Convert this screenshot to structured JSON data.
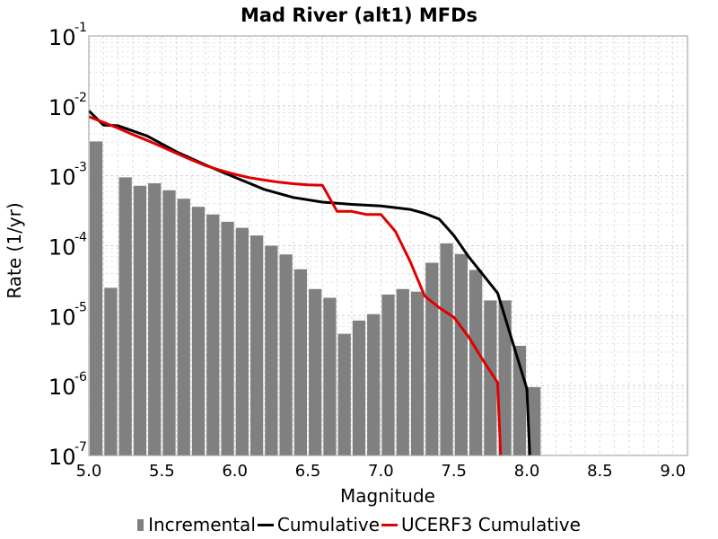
{
  "chart_data": {
    "type": "bar",
    "title": "Mad River (alt1) MFDs",
    "xlabel": "Magnitude",
    "ylabel": "Rate (1/yr)",
    "xlim": [
      5.0,
      9.1
    ],
    "ylim": [
      1e-07,
      0.1
    ],
    "yscale": "log",
    "grid": true,
    "legend_position": "bottom",
    "xticks": [
      "5.0",
      "5.5",
      "6.0",
      "6.5",
      "7.0",
      "7.5",
      "8.0",
      "8.5",
      "9.0"
    ],
    "yticks": [
      {
        "base": "10",
        "exp": "-1"
      },
      {
        "base": "10",
        "exp": "-2"
      },
      {
        "base": "10",
        "exp": "-3"
      },
      {
        "base": "10",
        "exp": "-4"
      },
      {
        "base": "10",
        "exp": "-5"
      },
      {
        "base": "10",
        "exp": "-6"
      },
      {
        "base": "10",
        "exp": "-7"
      }
    ],
    "series": [
      {
        "name": "Incremental",
        "kind": "bar",
        "color": "#808080",
        "x": [
          5.05,
          5.15,
          5.25,
          5.35,
          5.45,
          5.55,
          5.65,
          5.75,
          5.85,
          5.95,
          6.05,
          6.15,
          6.25,
          6.35,
          6.45,
          6.55,
          6.65,
          6.75,
          6.85,
          6.95,
          7.05,
          7.15,
          7.25,
          7.35,
          7.45,
          7.55,
          7.65,
          7.75,
          7.85,
          7.95,
          8.05
        ],
        "values": [
          0.0031,
          2.5e-05,
          0.00095,
          0.00072,
          0.00078,
          0.00062,
          0.00047,
          0.00036,
          0.00028,
          0.00022,
          0.00018,
          0.00014,
          0.0001,
          7.5e-05,
          4.6e-05,
          2.4e-05,
          1.8e-05,
          5.5e-06,
          8.5e-06,
          1.05e-05,
          2e-05,
          2.4e-05,
          2.2e-05,
          5.7e-05,
          0.000108,
          7.6e-05,
          4.5e-05,
          1.65e-05,
          1.65e-05,
          3.7e-06,
          9.5e-07
        ]
      },
      {
        "name": "Cumulative",
        "kind": "line",
        "color": "#000000",
        "x": [
          5.0,
          5.1,
          5.2,
          5.4,
          5.6,
          5.8,
          6.0,
          6.2,
          6.4,
          6.6,
          6.8,
          7.0,
          7.2,
          7.3,
          7.4,
          7.5,
          7.6,
          7.8,
          8.0,
          8.02
        ],
        "values": [
          0.0085,
          0.0053,
          0.0052,
          0.0037,
          0.0022,
          0.00143,
          0.00095,
          0.00064,
          0.00049,
          0.00042,
          0.00039,
          0.00037,
          0.00033,
          0.00029,
          0.00024,
          0.00014,
          7e-05,
          2.1e-05,
          9e-07,
          1e-07
        ]
      },
      {
        "name": "UCERF3 Cumulative",
        "kind": "line",
        "color": "#e00000",
        "x": [
          5.0,
          5.1,
          5.2,
          5.3,
          5.4,
          5.5,
          5.6,
          5.7,
          5.8,
          5.9,
          6.0,
          6.1,
          6.2,
          6.3,
          6.4,
          6.5,
          6.6,
          6.7,
          6.8,
          6.9,
          7.0,
          7.1,
          7.2,
          7.3,
          7.4,
          7.5,
          7.6,
          7.7,
          7.8,
          7.82
        ],
        "values": [
          0.007,
          0.0058,
          0.0048,
          0.0039,
          0.0032,
          0.0026,
          0.0021,
          0.0017,
          0.0014,
          0.0012,
          0.00105,
          0.00094,
          0.00087,
          0.00081,
          0.00077,
          0.00074,
          0.00073,
          0.00031,
          0.00031,
          0.00028,
          0.00028,
          0.00016,
          6e-05,
          1.9e-05,
          1.3e-05,
          9.5e-06,
          5e-06,
          2.3e-06,
          1.1e-06,
          1e-07
        ]
      }
    ]
  }
}
